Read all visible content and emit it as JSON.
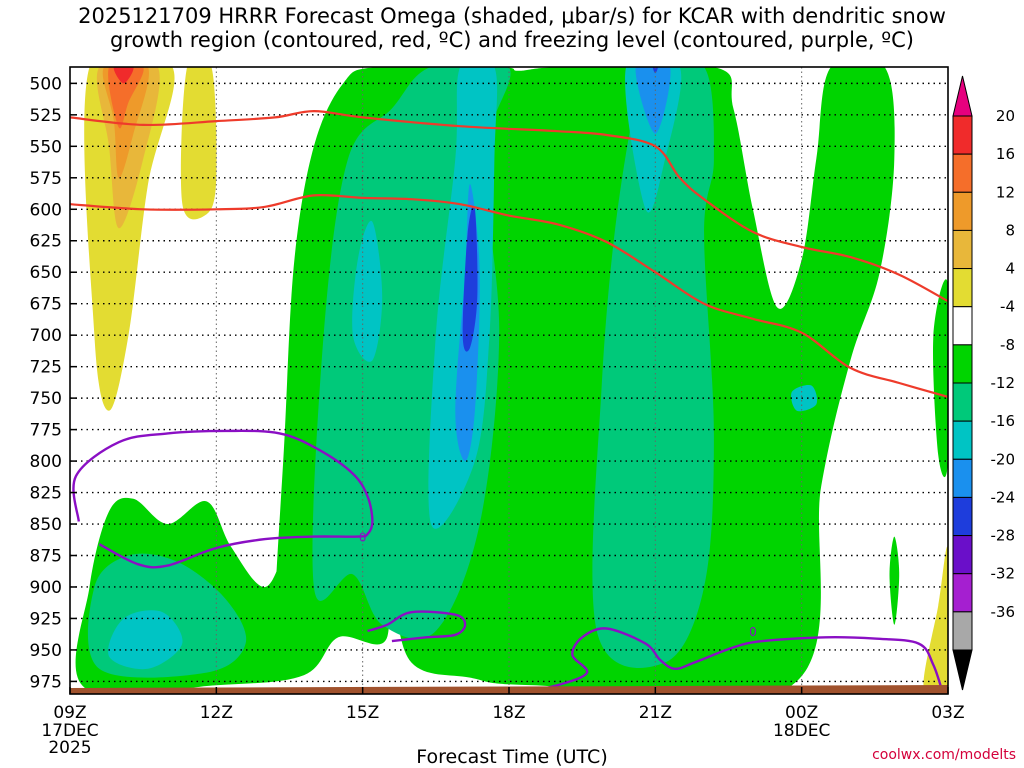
{
  "title": "2025121709 HRRR Forecast Omega (shaded, μbar/s) for KCAR with dendritic snow\ngrowth region (contoured, red, ºC) and freezing level (contoured, purple, ºC)",
  "footer": "coolwx.com/modelts",
  "colors": {
    "axis": "#000000",
    "grid": "#000000",
    "ground": "#a0522d",
    "dgz_contour": "#ee3b2b",
    "freezing_contour": "#8a0fc4"
  },
  "chart_data": {
    "type": "contour",
    "xlabel": "Forecast Time (UTC)",
    "ylabel": "",
    "x_ticks": [
      {
        "hour": 9,
        "label": "09Z",
        "sublabel": "17DEC\n2025"
      },
      {
        "hour": 12,
        "label": "12Z",
        "sublabel": ""
      },
      {
        "hour": 15,
        "label": "15Z",
        "sublabel": ""
      },
      {
        "hour": 18,
        "label": "18Z",
        "sublabel": ""
      },
      {
        "hour": 21,
        "label": "21Z",
        "sublabel": ""
      },
      {
        "hour": 24,
        "label": "00Z",
        "sublabel": "18DEC"
      },
      {
        "hour": 27,
        "label": "03Z",
        "sublabel": ""
      }
    ],
    "x_range_hours": [
      9,
      27
    ],
    "y_range_mb": [
      487,
      985
    ],
    "y_ticks": [
      500,
      525,
      550,
      575,
      600,
      625,
      650,
      675,
      700,
      725,
      750,
      775,
      800,
      825,
      850,
      875,
      900,
      925,
      950,
      975
    ],
    "grid": "dotted",
    "colorbar": {
      "label_values": [
        20,
        16,
        12,
        8,
        4,
        -4,
        -8,
        -12,
        -16,
        -20,
        -24,
        -28,
        -32,
        -36
      ],
      "bins": [
        {
          "color": "#e6007e",
          "shape": "tri-top"
        },
        {
          "color": "#f02b2b"
        },
        {
          "color": "#f56e2a"
        },
        {
          "color": "#ee9a2a"
        },
        {
          "color": "#e8b73a"
        },
        {
          "color": "#e3dc32"
        },
        {
          "color": "#ffffff"
        },
        {
          "color": "#00d400"
        },
        {
          "color": "#00c97a"
        },
        {
          "color": "#00c4c4"
        },
        {
          "color": "#1a90ee"
        },
        {
          "color": "#1e3ddc"
        },
        {
          "color": "#6a0fc9"
        },
        {
          "color": "#a51fd0"
        },
        {
          "color": "#a8a8a8"
        },
        {
          "color": "#000000",
          "shape": "tri-bottom"
        }
      ]
    },
    "omega_regions": [
      {
        "name": "positive-plume",
        "bin": 5,
        "points": [
          [
            9.4,
            487
          ],
          [
            11.1,
            487
          ],
          [
            10.6,
            580
          ],
          [
            10.2,
            700
          ],
          [
            9.8,
            760
          ],
          [
            9.5,
            700
          ]
        ]
      },
      {
        "name": "positive-plume",
        "bin": 5,
        "points": [
          [
            11.4,
            487
          ],
          [
            11.9,
            487
          ],
          [
            12.0,
            575
          ],
          [
            11.8,
            604
          ],
          [
            11.3,
            595
          ]
        ]
      },
      {
        "name": "positive-plume",
        "bin": 4,
        "points": [
          [
            9.6,
            487
          ],
          [
            10.8,
            487
          ],
          [
            10.5,
            560
          ],
          [
            10.0,
            615
          ],
          [
            9.8,
            550
          ]
        ]
      },
      {
        "name": "positive-plume",
        "bin": 3,
        "points": [
          [
            9.7,
            487
          ],
          [
            10.6,
            487
          ],
          [
            10.3,
            540
          ],
          [
            10.0,
            575
          ],
          [
            9.9,
            530
          ]
        ]
      },
      {
        "name": "positive-plume",
        "bin": 2,
        "points": [
          [
            9.8,
            487
          ],
          [
            10.5,
            487
          ],
          [
            10.2,
            515
          ],
          [
            10.0,
            535
          ]
        ]
      },
      {
        "name": "positive-plume",
        "bin": 1,
        "points": [
          [
            9.9,
            487
          ],
          [
            10.3,
            487
          ],
          [
            10.1,
            500
          ]
        ]
      },
      {
        "name": "positive-plume",
        "bin": 5,
        "points": [
          [
            26.5,
            980
          ],
          [
            26.8,
            915
          ],
          [
            27.0,
            870
          ],
          [
            27.0,
            985
          ]
        ]
      },
      {
        "name": "low-level-ascent",
        "bin": 7,
        "points": [
          [
            9.3,
            980
          ],
          [
            9.4,
            900
          ],
          [
            9.8,
            840
          ],
          [
            10.3,
            830
          ],
          [
            11.0,
            850
          ],
          [
            11.8,
            832
          ],
          [
            12.3,
            868
          ],
          [
            13.0,
            900
          ],
          [
            13.5,
            860
          ],
          [
            14.0,
            815
          ],
          [
            14.5,
            790
          ],
          [
            15.0,
            800
          ],
          [
            15.3,
            850
          ],
          [
            15.5,
            940
          ],
          [
            14.5,
            940
          ],
          [
            13.8,
            970
          ],
          [
            12.0,
            978
          ]
        ]
      },
      {
        "name": "main-ascent",
        "bin": 7,
        "points": [
          [
            13.2,
            950
          ],
          [
            13.4,
            780
          ],
          [
            13.6,
            640
          ],
          [
            14.0,
            550
          ],
          [
            14.6,
            500
          ],
          [
            15.3,
            487
          ],
          [
            17.8,
            487
          ],
          [
            18.2,
            490
          ],
          [
            19.1,
            487
          ],
          [
            22.2,
            487
          ],
          [
            22.6,
            520
          ],
          [
            23.0,
            600
          ],
          [
            23.5,
            678
          ],
          [
            24.0,
            640
          ],
          [
            24.3,
            560
          ],
          [
            24.6,
            487
          ],
          [
            25.7,
            487
          ],
          [
            25.9,
            560
          ],
          [
            25.6,
            650
          ],
          [
            25.0,
            720
          ],
          [
            24.4,
            820
          ],
          [
            23.8,
            978
          ],
          [
            18.5,
            978
          ],
          [
            17.2,
            972
          ],
          [
            16.0,
            960
          ],
          [
            15.5,
            900
          ],
          [
            14.5,
            850
          ],
          [
            13.8,
            900
          ]
        ]
      },
      {
        "name": "right-edge-ascent",
        "bin": 7,
        "points": [
          [
            26.7,
            700
          ],
          [
            27.0,
            660
          ],
          [
            27.0,
            800
          ],
          [
            26.8,
            795
          ]
        ]
      },
      {
        "name": "isolated-ascent",
        "bin": 7,
        "points": [
          [
            25.9,
            860
          ],
          [
            26.0,
            890
          ],
          [
            25.9,
            930
          ],
          [
            25.8,
            890
          ]
        ]
      },
      {
        "name": "mid-ascent",
        "bin": 8,
        "points": [
          [
            14.0,
            900
          ],
          [
            14.2,
            700
          ],
          [
            14.7,
            560
          ],
          [
            15.6,
            520
          ],
          [
            16.4,
            487
          ],
          [
            18.0,
            487
          ],
          [
            17.5,
            560
          ],
          [
            17.8,
            700
          ],
          [
            17.4,
            850
          ],
          [
            16.5,
            935
          ],
          [
            15.4,
            930
          ],
          [
            14.8,
            890
          ]
        ]
      },
      {
        "name": "mid-ascent",
        "bin": 8,
        "points": [
          [
            19.8,
            935
          ],
          [
            19.9,
            740
          ],
          [
            20.3,
            580
          ],
          [
            20.9,
            487
          ],
          [
            22.0,
            487
          ],
          [
            22.2,
            560
          ],
          [
            22.0,
            620
          ],
          [
            22.2,
            780
          ],
          [
            22.0,
            900
          ],
          [
            21.2,
            960
          ]
        ]
      },
      {
        "name": "mid-ascent",
        "bin": 8,
        "points": [
          [
            9.6,
            965
          ],
          [
            9.5,
            900
          ],
          [
            10.2,
            875
          ],
          [
            11.2,
            880
          ],
          [
            12.2,
            910
          ],
          [
            12.6,
            945
          ],
          [
            11.8,
            968
          ]
        ]
      },
      {
        "name": "core-ascent",
        "bin": 9,
        "points": [
          [
            16.4,
            850
          ],
          [
            16.5,
            700
          ],
          [
            16.9,
            560
          ],
          [
            17.0,
            487
          ],
          [
            17.7,
            487
          ],
          [
            17.7,
            560
          ],
          [
            17.6,
            700
          ],
          [
            17.3,
            800
          ]
        ]
      },
      {
        "name": "core-ascent",
        "bin": 9,
        "points": [
          [
            20.4,
            487
          ],
          [
            21.5,
            487
          ],
          [
            21.2,
            560
          ],
          [
            20.8,
            600
          ]
        ]
      },
      {
        "name": "core-ascent",
        "bin": 9,
        "points": [
          [
            14.8,
            700
          ],
          [
            14.9,
            640
          ],
          [
            15.2,
            610
          ],
          [
            15.4,
            670
          ],
          [
            15.2,
            720
          ]
        ]
      },
      {
        "name": "core-ascent",
        "bin": 9,
        "points": [
          [
            9.8,
            955
          ],
          [
            10.1,
            925
          ],
          [
            10.9,
            920
          ],
          [
            11.3,
            945
          ],
          [
            10.6,
            965
          ]
        ]
      },
      {
        "name": "core-ascent",
        "bin": 9,
        "points": [
          [
            23.8,
            745
          ],
          [
            24.2,
            740
          ],
          [
            24.3,
            755
          ],
          [
            23.9,
            760
          ]
        ]
      },
      {
        "name": "strong-ascent",
        "bin": 10,
        "points": [
          [
            16.9,
            760
          ],
          [
            17.1,
            650
          ],
          [
            17.2,
            580
          ],
          [
            17.4,
            650
          ],
          [
            17.3,
            760
          ],
          [
            17.1,
            800
          ]
        ]
      },
      {
        "name": "strong-ascent",
        "bin": 10,
        "points": [
          [
            20.6,
            487
          ],
          [
            21.3,
            487
          ],
          [
            21.0,
            540
          ]
        ]
      },
      {
        "name": "strongest-ascent",
        "bin": 11,
        "points": [
          [
            17.05,
            700
          ],
          [
            17.15,
            620
          ],
          [
            17.3,
            600
          ],
          [
            17.35,
            670
          ],
          [
            17.2,
            710
          ]
        ]
      },
      {
        "name": "strongest-ascent",
        "bin": 11,
        "points": [
          [
            20.95,
            487
          ],
          [
            21.05,
            487
          ],
          [
            21.0,
            492
          ]
        ]
      }
    ],
    "dgz_contours": [
      {
        "name": "-12C",
        "points": [
          [
            9,
            527
          ],
          [
            10.5,
            533
          ],
          [
            12,
            530
          ],
          [
            13.2,
            527
          ],
          [
            14,
            522
          ],
          [
            15,
            527
          ],
          [
            17,
            534
          ],
          [
            19,
            538
          ],
          [
            20,
            541
          ],
          [
            21,
            550
          ],
          [
            21.5,
            575
          ],
          [
            22,
            592
          ],
          [
            23,
            618
          ],
          [
            24,
            630
          ],
          [
            25,
            638
          ],
          [
            26,
            652
          ],
          [
            27,
            673
          ]
        ]
      },
      {
        "name": "-18C",
        "points": [
          [
            9,
            596
          ],
          [
            10.5,
            600
          ],
          [
            12,
            600
          ],
          [
            13,
            598
          ],
          [
            14,
            589
          ],
          [
            15,
            591
          ],
          [
            16,
            592
          ],
          [
            17,
            596
          ],
          [
            18,
            605
          ],
          [
            19,
            612
          ],
          [
            20,
            626
          ],
          [
            21,
            650
          ],
          [
            22,
            675
          ],
          [
            23,
            687
          ],
          [
            24,
            698
          ],
          [
            25,
            726
          ],
          [
            26,
            738
          ],
          [
            27,
            749
          ]
        ]
      }
    ],
    "freezing_contours": [
      {
        "name": "0C",
        "points": [
          [
            9.18,
            848
          ],
          [
            9.12,
            812
          ],
          [
            10.0,
            785
          ],
          [
            11.0,
            778
          ],
          [
            12.2,
            776
          ],
          [
            13.3,
            778
          ],
          [
            14.1,
            791
          ],
          [
            14.8,
            810
          ],
          [
            15.1,
            828
          ],
          [
            15.2,
            848
          ],
          [
            15.1,
            858
          ],
          [
            14.9,
            860
          ],
          [
            14.0,
            860
          ],
          [
            13.0,
            862
          ],
          [
            12.0,
            869
          ],
          [
            11.0,
            883
          ],
          [
            10.4,
            882
          ],
          [
            9.6,
            866
          ]
        ]
      },
      {
        "name": "0C",
        "points": [
          [
            15.1,
            935
          ],
          [
            15.5,
            930
          ],
          [
            16.0,
            920
          ],
          [
            16.9,
            922
          ],
          [
            17.1,
            930
          ],
          [
            16.9,
            938
          ],
          [
            16.3,
            940
          ],
          [
            15.6,
            943
          ]
        ]
      },
      {
        "name": "0C",
        "points": [
          [
            18.1,
            985
          ],
          [
            19.0,
            978
          ],
          [
            19.6,
            968
          ],
          [
            19.3,
            954
          ],
          [
            19.5,
            940
          ],
          [
            20.0,
            933
          ],
          [
            20.8,
            945
          ],
          [
            21.1,
            958
          ],
          [
            21.4,
            965
          ],
          [
            21.8,
            960
          ],
          [
            22.6,
            948
          ],
          [
            23.2,
            943
          ],
          [
            24.5,
            940
          ],
          [
            25.5,
            941
          ],
          [
            26.4,
            945
          ],
          [
            26.7,
            962
          ],
          [
            26.9,
            985
          ]
        ]
      }
    ],
    "contour_labels": [
      {
        "text": "0",
        "hour": 15.0,
        "mb": 860
      },
      {
        "text": "0",
        "hour": 23.0,
        "mb": 935
      }
    ]
  }
}
